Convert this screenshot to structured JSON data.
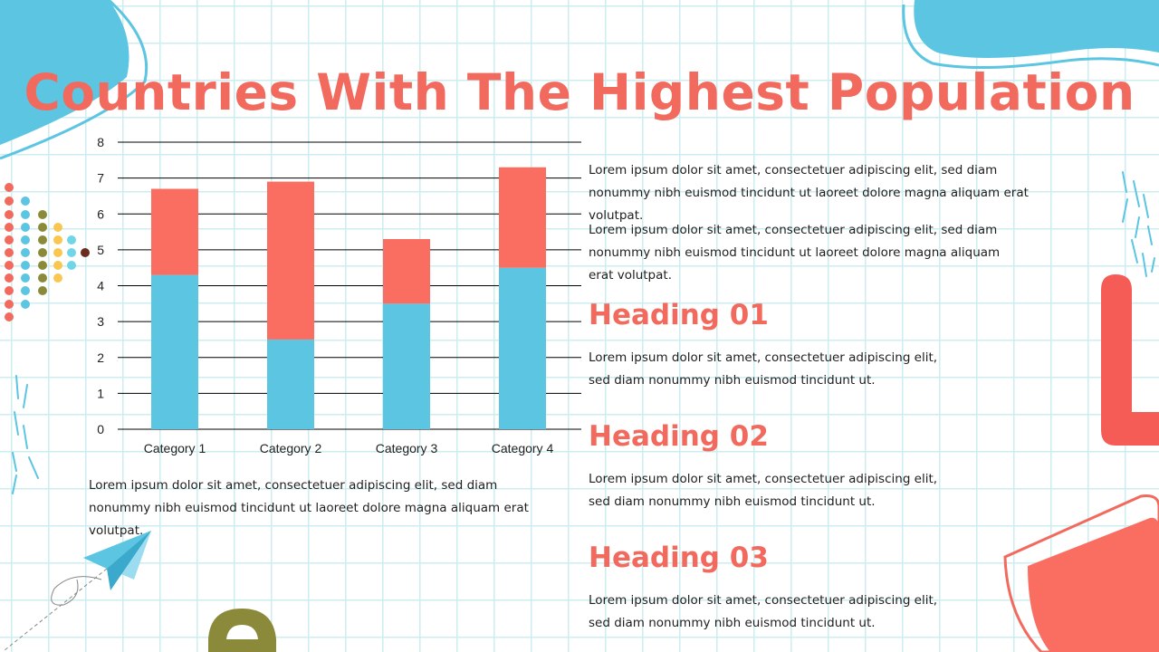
{
  "title": "Countries With The Highest Population",
  "paragraphs": {
    "top_1": "Lorem ipsum dolor sit amet, consectetuer adipiscing elit, sed diam nonummy nibh euismod tincidunt ut laoreet dolore magna aliquam erat volutpat.",
    "top_2": "Lorem ipsum dolor sit amet, consectetuer adipiscing elit, sed diam nonummy nibh euismod tincidunt ut laoreet dolore magna aliquam erat volutpat.",
    "below_chart": "Lorem ipsum dolor sit amet, consectetuer adipiscing elit, sed diam nonummy nibh euismod tincidunt ut laoreet dolore magna aliquam erat volutpat."
  },
  "sections": [
    {
      "heading": "Heading 01",
      "text": "Lorem ipsum dolor sit amet, consectetuer adipiscing elit, sed diam nonummy nibh euismod tincidunt ut."
    },
    {
      "heading": "Heading 02",
      "text": "Lorem ipsum dolor sit amet, consectetuer adipiscing elit, sed diam nonummy nibh euismod tincidunt ut."
    },
    {
      "heading": "Heading 03",
      "text": "Lorem ipsum dolor sit amet, consectetuer adipiscing elit, sed diam nonummy nibh euismod tincidunt ut."
    }
  ],
  "colors": {
    "title": "#f26a5e",
    "series_bottom": "#5bc5e2",
    "series_top": "#fa6e62"
  },
  "chart_data": {
    "type": "bar",
    "stacked": true,
    "categories": [
      "Category 1",
      "Category 2",
      "Category 3",
      "Category 4"
    ],
    "series": [
      {
        "values": [
          4.3,
          2.5,
          3.5,
          4.5
        ],
        "color": "#5bc5e2"
      },
      {
        "values": [
          2.4,
          4.4,
          1.8,
          2.8
        ],
        "color": "#fa6e62"
      }
    ],
    "ylim": [
      0,
      8
    ],
    "yticks": [
      0,
      1,
      2,
      3,
      4,
      5,
      6,
      7,
      8
    ],
    "grid": true,
    "legend": "none"
  }
}
